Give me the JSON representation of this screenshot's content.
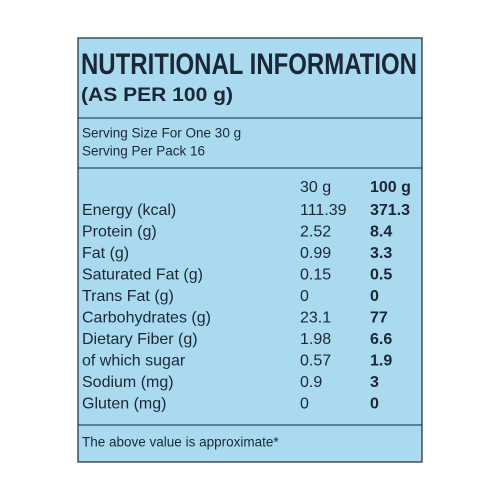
{
  "header": {
    "title": "NUTRITIONAL INFORMATION",
    "subtitle": "(AS PER 100 g)"
  },
  "serving": {
    "size": "Serving Size For One 30 g",
    "per_pack": "Serving Per Pack 16"
  },
  "table": {
    "columns": [
      "30 g",
      "100 g"
    ],
    "rows": [
      [
        "Energy (kcal)",
        111.39,
        371.3
      ],
      [
        "Protein (g)",
        2.52,
        8.4
      ],
      [
        "Fat (g)",
        0.99,
        3.3
      ],
      [
        "Saturated Fat (g)",
        0.15,
        0.5
      ],
      [
        "Trans Fat (g)",
        0,
        0
      ],
      [
        "Carbohydrates (g)",
        23.1,
        77
      ],
      [
        "Dietary Fiber (g)",
        1.98,
        6.6
      ],
      [
        "of which sugar",
        0.57,
        1.9
      ],
      [
        "Sodium (mg)",
        0.9,
        3
      ],
      [
        "Gluten (mg)",
        0,
        0
      ]
    ]
  },
  "footnote": "The above value is approximate*"
}
